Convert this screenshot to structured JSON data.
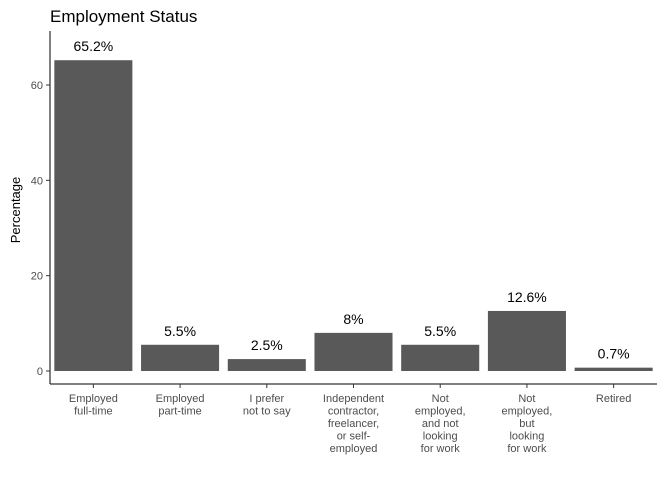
{
  "chart_data": {
    "type": "bar",
    "title": "Employment Status",
    "xlabel": "",
    "ylabel": "Percentage",
    "ylim": [
      0,
      70
    ],
    "yticks": [
      0,
      20,
      40,
      60
    ],
    "grid": false,
    "legend": "none",
    "bar_color": "#595959",
    "categories": [
      [
        "Employed",
        "full-time"
      ],
      [
        "Employed",
        "part-time"
      ],
      [
        "I prefer",
        "not to say"
      ],
      [
        "Independent",
        "contractor,",
        "freelancer,",
        "or self-",
        "employed"
      ],
      [
        "Not",
        "employed,",
        "and not",
        "looking",
        "for work"
      ],
      [
        "Not",
        "employed,",
        "but",
        "looking",
        "for work"
      ],
      [
        "Retired"
      ]
    ],
    "values": [
      65.2,
      5.5,
      2.5,
      8,
      5.5,
      12.6,
      0.7
    ],
    "labels": [
      "65.2%",
      "5.5%",
      "2.5%",
      "8%",
      "5.5%",
      "12.6%",
      "0.7%"
    ]
  }
}
